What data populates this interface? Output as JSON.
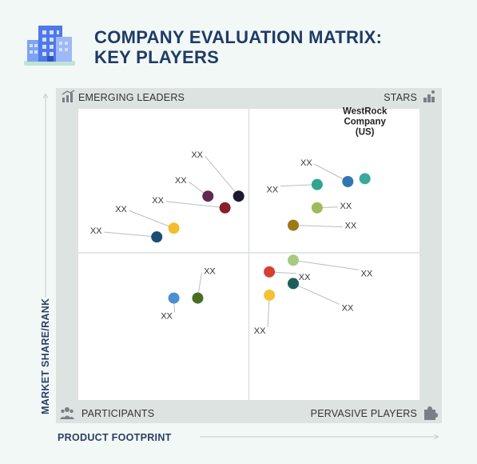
{
  "header": {
    "title": "COMPANY EVALUATION MATRIX:\nKEY PLAYERS"
  },
  "chart_data": {
    "type": "scatter",
    "xlabel": "PRODUCT FOOTPRINT",
    "ylabel": "MARKET SHARE/RANK",
    "xlim": [
      0,
      100
    ],
    "ylim": [
      0,
      100
    ],
    "dividers": {
      "x": 50,
      "y": 50
    },
    "quadrants": {
      "top_left": "EMERGING LEADERS",
      "top_right": "STARS",
      "bottom_left": "PARTICIPANTS",
      "bottom_right": "PERVASIVE PLAYERS"
    },
    "colors": {
      "quadrant_border": "#c9cfcc",
      "frame": "#dde3e0",
      "divider": "#d5dad8"
    },
    "points": [
      {
        "label": "WestRock\nCompany\n(US)",
        "x": 84,
        "y": 76,
        "color": "#3aa89c",
        "emph": true
      },
      {
        "label": "XX",
        "x": 79,
        "y": 75,
        "color": "#2f77b0"
      },
      {
        "label": "XX",
        "x": 70,
        "y": 74,
        "color": "#2ea58f"
      },
      {
        "label": "XX",
        "x": 70,
        "y": 66,
        "color": "#9dbb5a"
      },
      {
        "label": "XX",
        "x": 63,
        "y": 60,
        "color": "#9c7a14"
      },
      {
        "label": "XX",
        "x": 47,
        "y": 70,
        "color": "#1c1a30"
      },
      {
        "label": "XX",
        "x": 38,
        "y": 70,
        "color": "#5e2a4e"
      },
      {
        "label": "XX",
        "x": 43,
        "y": 66,
        "color": "#861f2b"
      },
      {
        "label": "XX",
        "x": 28,
        "y": 59,
        "color": "#f4bd2f"
      },
      {
        "label": "XX",
        "x": 23,
        "y": 56,
        "color": "#1e4d73"
      },
      {
        "label": "XX",
        "x": 63,
        "y": 48,
        "color": "#a8c980"
      },
      {
        "label": "XX",
        "x": 56,
        "y": 44,
        "color": "#d63f33"
      },
      {
        "label": "XX",
        "x": 63,
        "y": 40,
        "color": "#1f5e58"
      },
      {
        "label": "XX",
        "x": 56,
        "y": 36,
        "color": "#f5c033"
      },
      {
        "label": "XX",
        "x": 35,
        "y": 35,
        "color": "#4b6c23"
      },
      {
        "label": "XX",
        "x": 28,
        "y": 35,
        "color": "#4a8fcf"
      }
    ]
  }
}
